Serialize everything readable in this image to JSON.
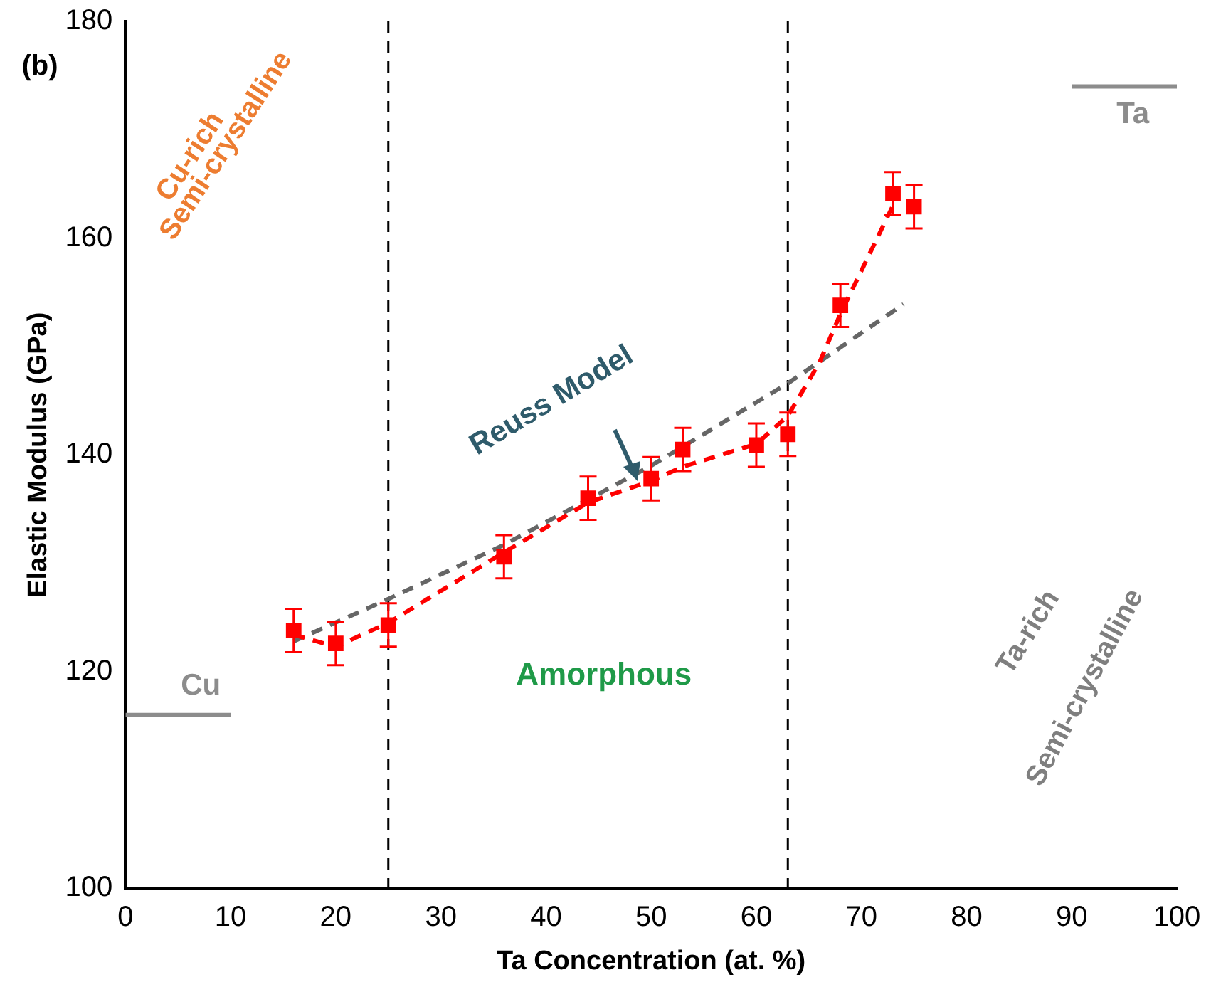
{
  "chart_data": {
    "type": "scatter",
    "xlabel": "Ta Concentration (at. %)",
    "ylabel": "Elastic Modulus (GPa)",
    "xlim": [
      0,
      100
    ],
    "xticks": [
      0,
      10,
      20,
      30,
      40,
      50,
      60,
      70,
      80,
      90,
      100
    ],
    "ylim": [
      100,
      180
    ],
    "yticks": [
      100,
      120,
      140,
      160,
      180
    ],
    "grid": false,
    "legend": false,
    "series": [
      {
        "type": "scatter",
        "color": "#ff0000",
        "marker": "square",
        "x": [
          16,
          20,
          25,
          36,
          44,
          50,
          53,
          60,
          63,
          68,
          73,
          75
        ],
        "values": [
          123.8,
          122.6,
          124.3,
          130.6,
          136.0,
          137.8,
          140.5,
          140.9,
          141.9,
          153.8,
          164.1,
          162.9
        ],
        "errors": [
          2,
          2,
          2,
          2,
          2,
          2,
          2,
          2,
          2,
          2,
          2,
          2
        ]
      },
      {
        "type": "line",
        "color": "#ff0000",
        "line_style": "dashed",
        "marker": "none",
        "x": [
          16,
          20,
          25,
          36,
          44,
          50,
          53,
          60,
          63,
          66,
          68,
          71,
          73
        ],
        "values": [
          123.4,
          122.3,
          124.5,
          131.0,
          135.6,
          137.6,
          138.9,
          141.0,
          143.6,
          148.5,
          153.0,
          159.0,
          163.0
        ]
      },
      {
        "type": "line",
        "name": "Reuss Model",
        "color": "#666666",
        "line_style": "dashed",
        "marker": "none",
        "x": [
          16,
          25,
          36,
          50,
          63,
          74
        ],
        "values": [
          122.8,
          126.7,
          131.7,
          139.0,
          146.6,
          153.9
        ]
      },
      {
        "type": "line",
        "name": "Cu",
        "color": "#8c8c8c",
        "line_style": "solid",
        "marker": "none",
        "x": [
          0,
          10
        ],
        "values": [
          116,
          116
        ]
      },
      {
        "type": "line",
        "name": "Ta",
        "color": "#8c8c8c",
        "line_style": "solid",
        "marker": "none",
        "x": [
          90,
          100
        ],
        "values": [
          174,
          174
        ]
      }
    ],
    "ref_lines": [
      {
        "axis": "x",
        "value": 25,
        "color": "#000000",
        "line_style": "dashed"
      },
      {
        "axis": "x",
        "value": 63,
        "color": "#000000",
        "line_style": "dashed"
      }
    ],
    "annotations": [
      "(b)",
      "Cu-rich",
      "Semi-crystalline",
      "Amorphous",
      "Ta-rich",
      "Semi-crystalline"
    ]
  }
}
